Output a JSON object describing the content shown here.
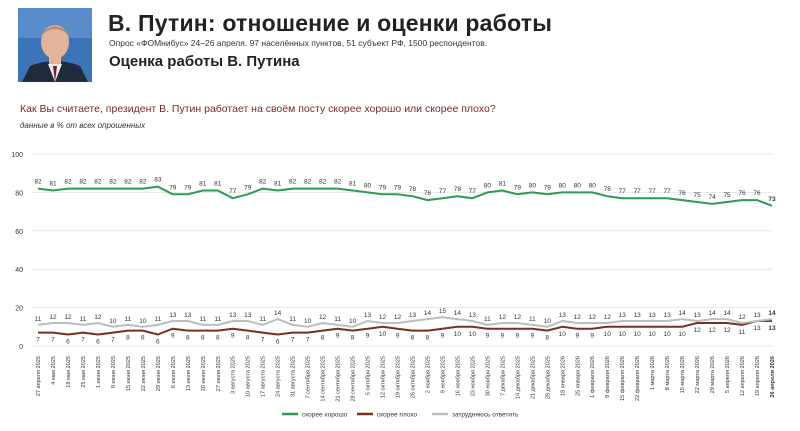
{
  "header": {
    "title": "В. Путин: отношение и оценки работы",
    "subtitle": "Опрос «ФОМнибус» 24–26 апреля. 97 населённых пунктов, 51 субъект РФ, 1500 респондентов.",
    "section_title": "Оценка работы В. Путина"
  },
  "question": "Как Вы считаете, президент В. Путин работает на своём посту скорее хорошо или скорее плохо?",
  "note": "данные в % от всех опрошенных",
  "colors": {
    "good": "#2e9a55",
    "bad": "#7b2f1f",
    "unsure": "#bdbdbd",
    "grid": "#e3e3e3",
    "accent": "#7a2a2a"
  },
  "chart_data": {
    "type": "line",
    "ylim": [
      0,
      100
    ],
    "yticks": [
      0,
      20,
      40,
      60,
      80,
      100
    ],
    "grid": true,
    "legend_position": "bottom",
    "categories": [
      "27 апреля 2025",
      "4 мая 2025",
      "18 мая 2025",
      "25 мая 2025",
      "1 июня 2025",
      "8 июня 2025",
      "15 июня 2025",
      "22 июня 2025",
      "29 июня 2025",
      "6 июля 2025",
      "13 июля 2025",
      "20 июля 2025",
      "27 июля 2025",
      "3 августа 2025",
      "10 августа 2025",
      "17 августа 2025",
      "24 августа 2025",
      "31 августа 2025",
      "7 сентября 2025",
      "14 сентября 2025",
      "21 сентября 2025",
      "28 сентября 2025",
      "5 октября 2025",
      "12 октября 2025",
      "19 октября 2025",
      "26 октября 2025",
      "2 ноября 2025",
      "9 ноября 2025",
      "16 ноября 2025",
      "23 ноября 2025",
      "30 ноября 2025",
      "7 декабря 2025",
      "14 декабря 2025",
      "21 декабря 2025",
      "28 декабря 2025",
      "18 января 2026",
      "25 января 2026",
      "1 февраля 2026",
      "8 февраля 2026",
      "15 февраля 2026",
      "22 февраля 2026",
      "1 марта 2026",
      "8 марта 2026",
      "15 марта 2026",
      "22 марта 2026",
      "29 марта 2026",
      "5 апреля 2026",
      "12 апреля 2026",
      "19 апреля 2026",
      "26 апреля 2026"
    ],
    "series": [
      {
        "name": "скорее хорошо",
        "color": "#2e9a55",
        "values": [
          82,
          81,
          82,
          82,
          82,
          82,
          82,
          82,
          83,
          79,
          79,
          81,
          81,
          77,
          79,
          82,
          81,
          82,
          82,
          82,
          82,
          81,
          80,
          79,
          79,
          78,
          76,
          77,
          78,
          77,
          80,
          81,
          79,
          80,
          79,
          80,
          80,
          80,
          78,
          77,
          77,
          77,
          77,
          76,
          75,
          74,
          75,
          76,
          76,
          73
        ]
      },
      {
        "name": "скорее плохо",
        "color": "#7b2f1f",
        "values": [
          7,
          7,
          6,
          7,
          6,
          7,
          8,
          8,
          6,
          9,
          8,
          8,
          8,
          9,
          8,
          7,
          6,
          7,
          7,
          8,
          9,
          8,
          9,
          10,
          9,
          8,
          8,
          9,
          10,
          10,
          9,
          9,
          9,
          9,
          8,
          10,
          9,
          9,
          10,
          10,
          10,
          10,
          10,
          10,
          12,
          12,
          12,
          11,
          13,
          13
        ]
      },
      {
        "name": "затрудняюсь ответить",
        "color": "#bdbdbd",
        "values": [
          11,
          12,
          12,
          11,
          12,
          10,
          11,
          10,
          11,
          13,
          13,
          11,
          11,
          13,
          13,
          11,
          14,
          11,
          10,
          12,
          11,
          10,
          13,
          12,
          12,
          13,
          14,
          15,
          14,
          13,
          11,
          12,
          12,
          11,
          10,
          13,
          12,
          12,
          12,
          13,
          13,
          13,
          13,
          14,
          13,
          14,
          14,
          12,
          13,
          14
        ]
      }
    ]
  }
}
